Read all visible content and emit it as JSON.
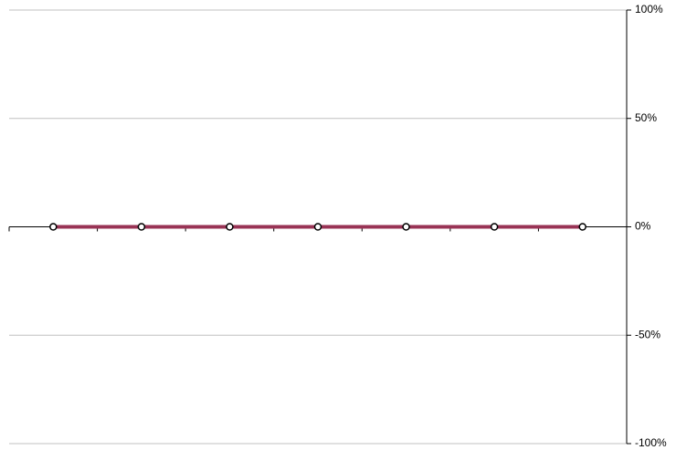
{
  "chart_data": {
    "type": "line",
    "categories": [
      null,
      null,
      null,
      null,
      null,
      null,
      null
    ],
    "values": [
      0,
      0,
      0,
      0,
      0,
      0,
      0
    ],
    "color": "#993355",
    "ylim": [
      -100,
      100
    ],
    "yticks": [
      {
        "value": -100,
        "label": "-100%"
      },
      {
        "value": -50,
        "label": "-50%"
      },
      {
        "value": 0,
        "label": "0%"
      },
      {
        "value": 50,
        "label": "50%"
      },
      {
        "value": 100,
        "label": "100%"
      }
    ],
    "grid": true
  }
}
